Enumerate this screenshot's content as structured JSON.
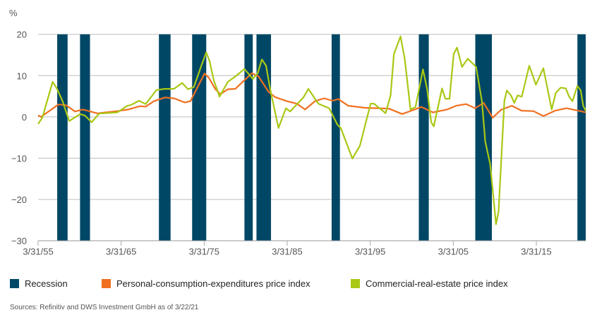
{
  "chart_data": {
    "type": "line",
    "ylabel": "%",
    "ylim": [
      -30,
      20
    ],
    "yticks": [
      20,
      10,
      0,
      -10,
      -20,
      -30
    ],
    "xlim": [
      1955.25,
      2021.2
    ],
    "xticks": [
      {
        "x": 1955.25,
        "label": "3/31/55"
      },
      {
        "x": 1965.25,
        "label": "3/31/65"
      },
      {
        "x": 1975.25,
        "label": "3/31/75"
      },
      {
        "x": 1985.25,
        "label": "3/31/85"
      },
      {
        "x": 1995.25,
        "label": "3/31/95"
      },
      {
        "x": 2005.25,
        "label": "3/31/05"
      },
      {
        "x": 2015.25,
        "label": "3/31/15"
      }
    ],
    "grid": true,
    "legend_position": "bottom",
    "recessions": {
      "name": "Recession",
      "color": "#004766",
      "periods": [
        [
          1957.55,
          1958.8
        ],
        [
          1960.3,
          1961.5
        ],
        [
          1969.8,
          1971.2
        ],
        [
          1973.8,
          1975.5
        ],
        [
          1980.1,
          1981.1
        ],
        [
          1981.55,
          1983.3
        ],
        [
          1990.6,
          1991.6
        ],
        [
          2001.1,
          2002.3
        ],
        [
          2007.9,
          2009.9
        ],
        [
          2020.2,
          2021.2
        ]
      ]
    },
    "series": [
      {
        "name": "Personal-consumption-expenditures price index",
        "color": "#f07020",
        "points": [
          [
            1955.25,
            0.4
          ],
          [
            1955.6,
            0.0
          ],
          [
            1957.7,
            3.0
          ],
          [
            1958.6,
            2.85
          ],
          [
            1959.7,
            1.3
          ],
          [
            1960.6,
            1.8
          ],
          [
            1961.2,
            1.5
          ],
          [
            1962.4,
            0.85
          ],
          [
            1963.4,
            1.1
          ],
          [
            1964.8,
            1.4
          ],
          [
            1966.1,
            1.8
          ],
          [
            1967.5,
            2.6
          ],
          [
            1968.2,
            2.5
          ],
          [
            1969.2,
            3.8
          ],
          [
            1970.5,
            4.7
          ],
          [
            1971.6,
            4.5
          ],
          [
            1972.9,
            3.5
          ],
          [
            1973.6,
            3.8
          ],
          [
            1974.6,
            7.8
          ],
          [
            1975.3,
            10.5
          ],
          [
            1975.8,
            9.5
          ],
          [
            1976.6,
            6.7
          ],
          [
            1977.2,
            5.5
          ],
          [
            1978.1,
            6.7
          ],
          [
            1979.0,
            6.8
          ],
          [
            1980.0,
            8.7
          ],
          [
            1981.0,
            10.6
          ],
          [
            1981.8,
            9.8
          ],
          [
            1983.0,
            6.1
          ],
          [
            1983.8,
            4.8
          ],
          [
            1985.2,
            3.8
          ],
          [
            1986.4,
            3.2
          ],
          [
            1987.4,
            1.8
          ],
          [
            1988.6,
            3.8
          ],
          [
            1989.7,
            4.5
          ],
          [
            1990.7,
            3.9
          ],
          [
            1991.4,
            4.3
          ],
          [
            1992.6,
            2.7
          ],
          [
            1994.6,
            2.2
          ],
          [
            1997.5,
            2.0
          ],
          [
            1999.1,
            0.7
          ],
          [
            2000.2,
            1.5
          ],
          [
            2001.4,
            2.4
          ],
          [
            2002.8,
            1.1
          ],
          [
            2004.5,
            1.8
          ],
          [
            2005.6,
            2.7
          ],
          [
            2006.8,
            3.1
          ],
          [
            2007.9,
            2.1
          ],
          [
            2008.9,
            3.4
          ],
          [
            2010.0,
            -0.2
          ],
          [
            2011.0,
            1.7
          ],
          [
            2012.3,
            2.7
          ],
          [
            2013.5,
            1.5
          ],
          [
            2014.9,
            1.4
          ],
          [
            2016.1,
            0.2
          ],
          [
            2017.5,
            1.5
          ],
          [
            2018.9,
            2.1
          ],
          [
            2020.3,
            1.5
          ],
          [
            2021.2,
            1.1
          ]
        ]
      },
      {
        "name": "Commercial-real-estate price index",
        "color": "#a8c814",
        "points": [
          [
            1955.25,
            -1.7
          ],
          [
            1955.76,
            -0.2
          ],
          [
            1957.0,
            8.5
          ],
          [
            1957.5,
            6.9
          ],
          [
            1958.2,
            3.8
          ],
          [
            1959.0,
            -1.0
          ],
          [
            1960.3,
            0.7
          ],
          [
            1960.9,
            0.3
          ],
          [
            1961.7,
            -1.3
          ],
          [
            1962.6,
            0.8
          ],
          [
            1964.8,
            1.1
          ],
          [
            1966.0,
            2.7
          ],
          [
            1966.4,
            2.85
          ],
          [
            1967.4,
            3.9
          ],
          [
            1968.2,
            3.1
          ],
          [
            1969.5,
            6.5
          ],
          [
            1970.5,
            6.8
          ],
          [
            1971.6,
            6.8
          ],
          [
            1972.6,
            8.2
          ],
          [
            1973.3,
            6.7
          ],
          [
            1974.0,
            7.2
          ],
          [
            1975.0,
            12.9
          ],
          [
            1975.5,
            15.6
          ],
          [
            1975.9,
            13.5
          ],
          [
            1976.4,
            8.9
          ],
          [
            1977.1,
            4.9
          ],
          [
            1978.1,
            8.5
          ],
          [
            1979.0,
            9.8
          ],
          [
            1980.1,
            11.6
          ],
          [
            1981.1,
            9.2
          ],
          [
            1981.7,
            10.6
          ],
          [
            1982.2,
            13.9
          ],
          [
            1982.7,
            12.4
          ],
          [
            1983.2,
            6.7
          ],
          [
            1984.2,
            -2.7
          ],
          [
            1985.1,
            2.1
          ],
          [
            1985.6,
            1.3
          ],
          [
            1987.2,
            4.7
          ],
          [
            1987.8,
            6.8
          ],
          [
            1989.0,
            3.2
          ],
          [
            1990.3,
            2.1
          ],
          [
            1991.3,
            -1.9
          ],
          [
            1991.7,
            -2.7
          ],
          [
            1993.1,
            -10.1
          ],
          [
            1994.0,
            -7.0
          ],
          [
            1995.3,
            3.2
          ],
          [
            1995.7,
            3.2
          ],
          [
            1997.1,
            0.9
          ],
          [
            1997.7,
            5.2
          ],
          [
            1998.1,
            15.2
          ],
          [
            1998.9,
            19.5
          ],
          [
            1999.4,
            14.1
          ],
          [
            2000.1,
            1.8
          ],
          [
            2000.7,
            2.4
          ],
          [
            2001.6,
            11.5
          ],
          [
            2002.1,
            6.7
          ],
          [
            2002.6,
            -1.3
          ],
          [
            2002.9,
            -2.3
          ],
          [
            2003.9,
            6.9
          ],
          [
            2004.3,
            4.4
          ],
          [
            2004.8,
            4.4
          ],
          [
            2005.3,
            15.2
          ],
          [
            2005.7,
            16.8
          ],
          [
            2006.3,
            12.1
          ],
          [
            2007.0,
            14.1
          ],
          [
            2008.0,
            12.1
          ],
          [
            2008.7,
            3.8
          ],
          [
            2009.1,
            -5.9
          ],
          [
            2009.7,
            -11.5
          ],
          [
            2010.4,
            -26.0
          ],
          [
            2010.7,
            -22.9
          ],
          [
            2011.4,
            3.8
          ],
          [
            2011.7,
            6.4
          ],
          [
            2012.2,
            5.2
          ],
          [
            2012.6,
            3.4
          ],
          [
            2013.0,
            5.2
          ],
          [
            2013.5,
            4.9
          ],
          [
            2014.4,
            12.4
          ],
          [
            2015.2,
            7.8
          ],
          [
            2016.1,
            11.8
          ],
          [
            2017.1,
            1.8
          ],
          [
            2017.6,
            5.8
          ],
          [
            2018.2,
            7.1
          ],
          [
            2018.8,
            6.9
          ],
          [
            2019.2,
            4.9
          ],
          [
            2019.6,
            3.8
          ],
          [
            2020.2,
            7.5
          ],
          [
            2020.6,
            6.4
          ],
          [
            2020.9,
            2.7
          ],
          [
            2021.2,
            1.5
          ]
        ]
      }
    ]
  },
  "legend": {
    "recession": "Recession",
    "pce": "Personal-consumption-expenditures price index",
    "cre": "Commercial-real-estate price index"
  },
  "source": "Sources: Refinitiv and DWS Investment GmbH as of 3/22/21"
}
